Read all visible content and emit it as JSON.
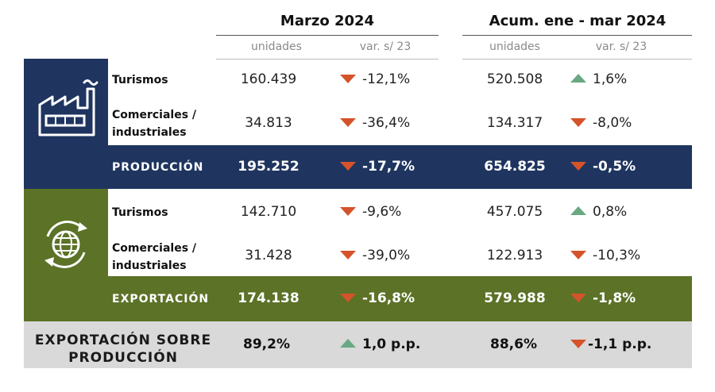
{
  "headers": {
    "period1": "Marzo 2024",
    "period2": "Acum. ene - mar 2024",
    "units": "unidades",
    "variation": "var. s/ 23"
  },
  "production": {
    "icon": "factory-icon",
    "rows": [
      {
        "label": "Turismos",
        "m_units": "160.439",
        "m_var": "-12,1%",
        "m_dir": "down",
        "a_units": "520.508",
        "a_var": "1,6%",
        "a_dir": "up"
      },
      {
        "label_line1": "Comerciales /",
        "label_line2": "industriales",
        "m_units": "34.813",
        "m_var": "-36,4%",
        "m_dir": "down",
        "a_units": "134.317",
        "a_var": "-8,0%",
        "a_dir": "down"
      }
    ],
    "total": {
      "label": "PRODUCCIÓN",
      "m_units": "195.252",
      "m_var": "-17,7%",
      "a_units": "654.825",
      "a_var": "-0,5%"
    }
  },
  "export": {
    "icon": "globe-cycle-icon",
    "rows": [
      {
        "label": "Turismos",
        "m_units": "142.710",
        "m_var": "-9,6%",
        "m_dir": "down",
        "a_units": "457.075",
        "a_var": "0,8%",
        "a_dir": "up"
      },
      {
        "label_line1": "Comerciales /",
        "label_line2": "industriales",
        "m_units": "31.428",
        "m_var": "-39,0%",
        "m_dir": "down",
        "a_units": "122.913",
        "a_var": "-10,3%",
        "a_dir": "down"
      }
    ],
    "total": {
      "label": "EXPORTACIÓN",
      "m_units": "174.138",
      "m_var": "-16,8%",
      "a_units": "579.988",
      "a_var": "-1,8%"
    }
  },
  "ratio": {
    "label_line1": "EXPORTACIÓN SOBRE",
    "label_line2": "PRODUCCIÓN",
    "m_value": "89,2%",
    "m_var": "1,0 p.p.",
    "a_value": "88,6%",
    "a_var": "-1,1 p.p."
  },
  "colors": {
    "navy": "#1f3560",
    "olive": "#5c7227",
    "grey": "#d9d9d9",
    "down": "#d5532b",
    "up": "#6aa882"
  }
}
